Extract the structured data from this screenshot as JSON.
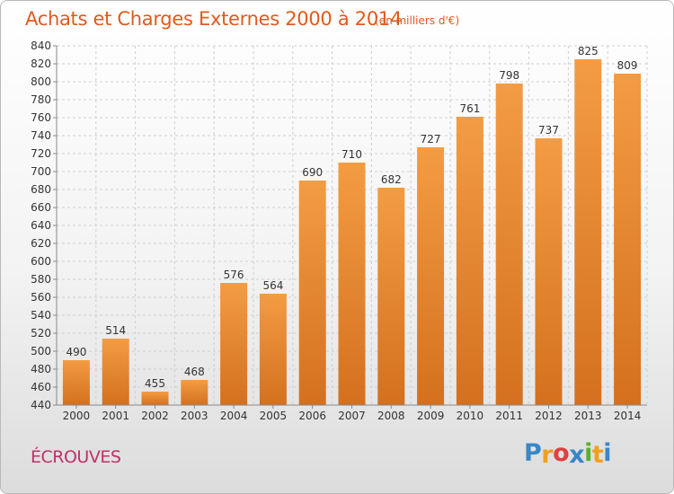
{
  "chart_data": {
    "type": "bar",
    "title": "Achats et Charges Externes 2000 à 2014",
    "subtitle": "(en milliers d'€)",
    "categories": [
      "2000",
      "2001",
      "2002",
      "2003",
      "2004",
      "2005",
      "2006",
      "2007",
      "2008",
      "2009",
      "2010",
      "2011",
      "2012",
      "2013",
      "2014"
    ],
    "values": [
      490,
      514,
      455,
      468,
      576,
      564,
      690,
      710,
      682,
      727,
      761,
      798,
      737,
      825,
      809
    ],
    "ylim": [
      440,
      840
    ],
    "yticks": [
      440,
      460,
      480,
      500,
      520,
      540,
      560,
      580,
      600,
      620,
      640,
      660,
      680,
      700,
      720,
      740,
      760,
      780,
      800,
      820,
      840
    ],
    "grid": true,
    "bar_color": "#f39c43",
    "bar_color_dark": "#d4701f"
  },
  "location": "ÉCROUVES",
  "logo": {
    "text": "Proxiti",
    "letters": [
      "P",
      "r",
      "o",
      "x",
      "i",
      "t",
      "i"
    ],
    "colors": [
      "#3a86c8",
      "#f0a020",
      "#e04040",
      "#3a86c8",
      "#58b030",
      "#f0a020",
      "#3a86c8"
    ]
  }
}
